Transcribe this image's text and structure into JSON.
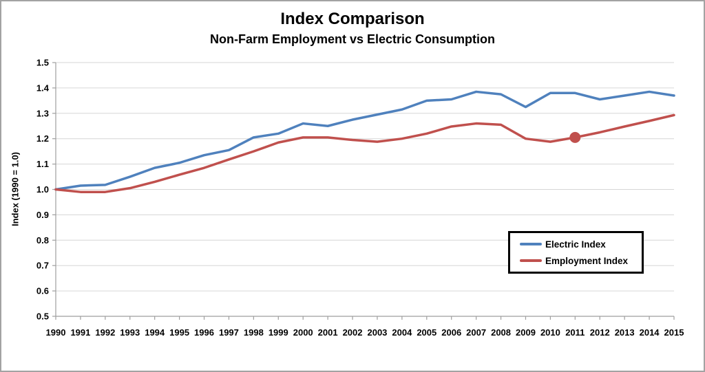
{
  "chart_data": {
    "type": "line",
    "title": "Index Comparison",
    "subtitle": "Non-Farm Employment vs Electric Consumption",
    "ylabel": "Index (1990 = 1.0)",
    "xlabel": "",
    "x": [
      1990,
      1991,
      1992,
      1993,
      1994,
      1995,
      1996,
      1997,
      1998,
      1999,
      2000,
      2001,
      2002,
      2003,
      2004,
      2005,
      2006,
      2007,
      2008,
      2009,
      2010,
      2011,
      2012,
      2013,
      2014,
      2015
    ],
    "series": [
      {
        "name": "Electric Index",
        "color": "#4F81BD",
        "values": [
          1.0,
          1.015,
          1.018,
          1.05,
          1.085,
          1.105,
          1.135,
          1.155,
          1.205,
          1.22,
          1.26,
          1.25,
          1.275,
          1.295,
          1.315,
          1.35,
          1.355,
          1.385,
          1.375,
          1.325,
          1.38,
          1.38,
          1.355,
          1.37,
          1.385,
          1.37
        ]
      },
      {
        "name": "Employment Index",
        "color": "#C0504D",
        "values": [
          1.0,
          0.99,
          0.99,
          1.005,
          1.03,
          1.058,
          1.085,
          1.118,
          1.15,
          1.185,
          1.205,
          1.205,
          1.195,
          1.188,
          1.2,
          1.22,
          1.248,
          1.26,
          1.255,
          1.2,
          1.188,
          1.205,
          1.225,
          1.248,
          1.27,
          1.293
        ],
        "marker_year": 2011
      }
    ],
    "ylim": [
      0.5,
      1.5
    ],
    "yticks": [
      "1.5",
      "1.4",
      "1.3",
      "1.2",
      "1.1",
      "1.0",
      "0.9",
      "0.8",
      "0.7",
      "0.6",
      "0.5"
    ],
    "grid": "horizontal",
    "legend": {
      "position": "middle-right"
    },
    "colors": {
      "gridline": "#D6D6D6",
      "axis": "#9E9E9E",
      "text": "#000000",
      "frame_border": "#A3A3A3",
      "background": "#FFFFFF"
    }
  }
}
